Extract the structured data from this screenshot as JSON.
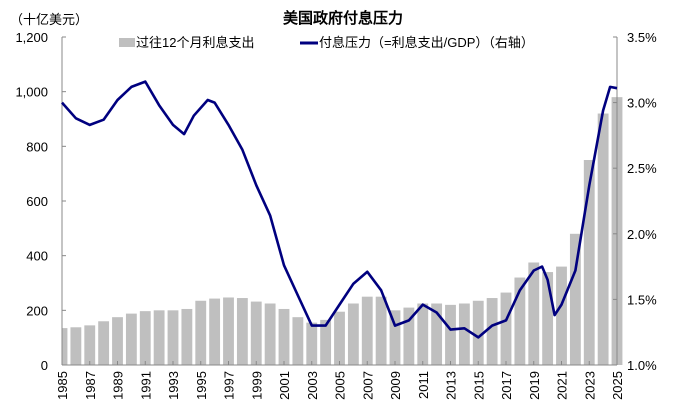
{
  "chart_data": {
    "type": "bar+line",
    "title": "美国政府付息压力",
    "left_unit": "（十亿美元）",
    "ylim_left": [
      0,
      1200
    ],
    "yticks_left": [
      "0",
      "200",
      "400",
      "600",
      "800",
      "1,000",
      "1,200"
    ],
    "ylim_right": [
      1.0,
      3.5
    ],
    "yticks_right": [
      "1.0%",
      "1.5%",
      "2.0%",
      "2.5%",
      "3.0%",
      "3.5%"
    ],
    "xlim": [
      1985,
      2025
    ],
    "xticks": [
      "1985",
      "1987",
      "1989",
      "1991",
      "1993",
      "1995",
      "1997",
      "1999",
      "2001",
      "2003",
      "2005",
      "2007",
      "2009",
      "2011",
      "2013",
      "2015",
      "2017",
      "2019",
      "2021",
      "2023",
      "2025"
    ],
    "grid": false,
    "legend_placement": "top",
    "series": [
      {
        "name": "过往12个月利息支出",
        "type": "bar",
        "axis": "left",
        "color": "#bfbfbf",
        "x": [
          1985,
          1986,
          1987,
          1988,
          1989,
          1990,
          1991,
          1992,
          1993,
          1994,
          1995,
          1996,
          1997,
          1998,
          1999,
          2000,
          2001,
          2002,
          2003,
          2004,
          2005,
          2006,
          2007,
          2008,
          2009,
          2010,
          2011,
          2012,
          2013,
          2014,
          2015,
          2016,
          2017,
          2018,
          2019,
          2020,
          2021,
          2022,
          2023,
          2024,
          2025
        ],
        "values": [
          135,
          138,
          145,
          160,
          175,
          188,
          197,
          200,
          200,
          205,
          235,
          243,
          247,
          245,
          232,
          225,
          205,
          175,
          155,
          165,
          195,
          225,
          250,
          250,
          200,
          210,
          225,
          225,
          220,
          225,
          235,
          245,
          265,
          320,
          375,
          340,
          360,
          480,
          750,
          920,
          980
        ]
      },
      {
        "name": "付息压力（=利息支出/GDP）（右轴）",
        "type": "line",
        "axis": "right",
        "color": "#00007f",
        "x": [
          1985,
          1986,
          1987,
          1988,
          1989,
          1990,
          1991,
          1992,
          1993,
          1993.8,
          1994.5,
          1995.5,
          1996,
          1997,
          1998,
          1999,
          2000,
          2001,
          2002,
          2003,
          2004,
          2005,
          2006,
          2007,
          2008,
          2009,
          2010,
          2011,
          2012,
          2013,
          2014,
          2015,
          2016,
          2017,
          2018,
          2019,
          2019.6,
          2020,
          2020.5,
          2021,
          2022,
          2023,
          2024,
          2024.5,
          2025
        ],
        "values": [
          3.0,
          2.88,
          2.83,
          2.87,
          3.02,
          3.12,
          3.16,
          2.98,
          2.83,
          2.76,
          2.9,
          3.02,
          3.0,
          2.83,
          2.64,
          2.37,
          2.14,
          1.76,
          1.53,
          1.3,
          1.3,
          1.46,
          1.62,
          1.71,
          1.57,
          1.3,
          1.34,
          1.46,
          1.4,
          1.27,
          1.28,
          1.21,
          1.3,
          1.34,
          1.57,
          1.72,
          1.75,
          1.65,
          1.38,
          1.46,
          1.72,
          2.37,
          2.94,
          3.12,
          3.11
        ]
      }
    ]
  }
}
